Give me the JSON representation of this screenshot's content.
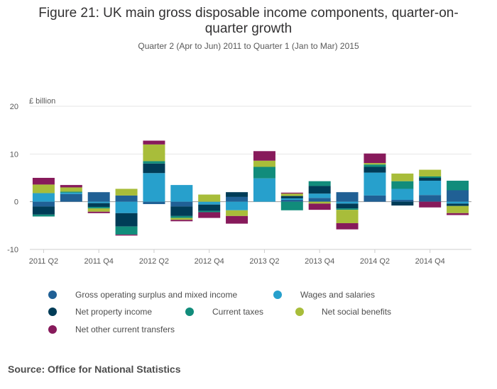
{
  "chart_data": {
    "type": "bar",
    "stacked": true,
    "title": "Figure 21: UK main gross disposable income components, quarter-on-quarter growth",
    "title_lines": [
      "Figure 21: UK main gross disposable income components, quarter-on-",
      "quarter growth"
    ],
    "subtitle": "Quarter 2 (Apr to Jun) 2011 to Quarter 1 (Jan to Mar) 2015",
    "ylabel": "£ billion",
    "ylim": [
      -10,
      20
    ],
    "yticks": [
      -10,
      0,
      10,
      20
    ],
    "grid": true,
    "legend_position": "bottom",
    "categories": [
      "2011 Q2",
      "2011 Q3",
      "2011 Q4",
      "2012 Q1",
      "2012 Q2",
      "2012 Q3",
      "2012 Q4",
      "2013 Q1",
      "2013 Q2",
      "2013 Q3",
      "2013 Q4",
      "2014 Q1",
      "2014 Q2",
      "2014 Q3",
      "2014 Q4",
      "2015 Q1"
    ],
    "x_tick_labels": [
      "2011 Q2",
      "2011 Q4",
      "2012 Q2",
      "2012 Q4",
      "2013 Q2",
      "2013 Q4",
      "2014 Q2",
      "2014 Q4"
    ],
    "series": [
      {
        "name": "Gross operating surplus and mixed income",
        "color": "#206095",
        "values": [
          -1.0,
          1.6,
          2.0,
          1.3,
          -0.5,
          -1.0,
          0.0,
          1.0,
          0.0,
          0.4,
          0.8,
          2.0,
          1.3,
          0.4,
          1.4,
          2.4
        ]
      },
      {
        "name": "Wages and salaries",
        "color": "#27a0cc",
        "values": [
          1.8,
          0.3,
          -0.3,
          -2.4,
          6.0,
          3.5,
          -0.6,
          -1.8,
          4.9,
          0.3,
          0.9,
          -0.4,
          4.8,
          2.3,
          3.0,
          -0.4
        ]
      },
      {
        "name": "Net property income",
        "color": "#003c57",
        "values": [
          -1.7,
          0.0,
          -0.8,
          -2.8,
          2.0,
          -2.0,
          -1.3,
          1.0,
          0.0,
          0.5,
          1.6,
          -1.0,
          1.2,
          -0.8,
          0.6,
          -0.5
        ]
      },
      {
        "name": "Current taxes",
        "color": "#118c7b",
        "values": [
          -0.4,
          0.2,
          -0.3,
          -1.7,
          0.5,
          -0.4,
          -0.3,
          0.0,
          2.4,
          -1.8,
          1.0,
          -0.3,
          0.5,
          1.6,
          0.3,
          2.0
        ]
      },
      {
        "name": "Net social benefits",
        "color": "#a8bd3a",
        "values": [
          1.8,
          0.9,
          -0.7,
          1.4,
          3.5,
          -0.4,
          1.5,
          -1.2,
          1.3,
          0.5,
          -0.4,
          -2.8,
          0.3,
          1.6,
          1.4,
          -1.5
        ]
      },
      {
        "name": "Net other current transfers",
        "color": "#871a5b",
        "values": [
          1.4,
          0.5,
          -0.3,
          -0.2,
          0.8,
          -0.3,
          -1.2,
          -1.6,
          2.0,
          0.2,
          -1.3,
          -1.3,
          2.0,
          0.0,
          -1.2,
          -0.4
        ]
      }
    ]
  },
  "source": "Source: Office for National Statistics"
}
